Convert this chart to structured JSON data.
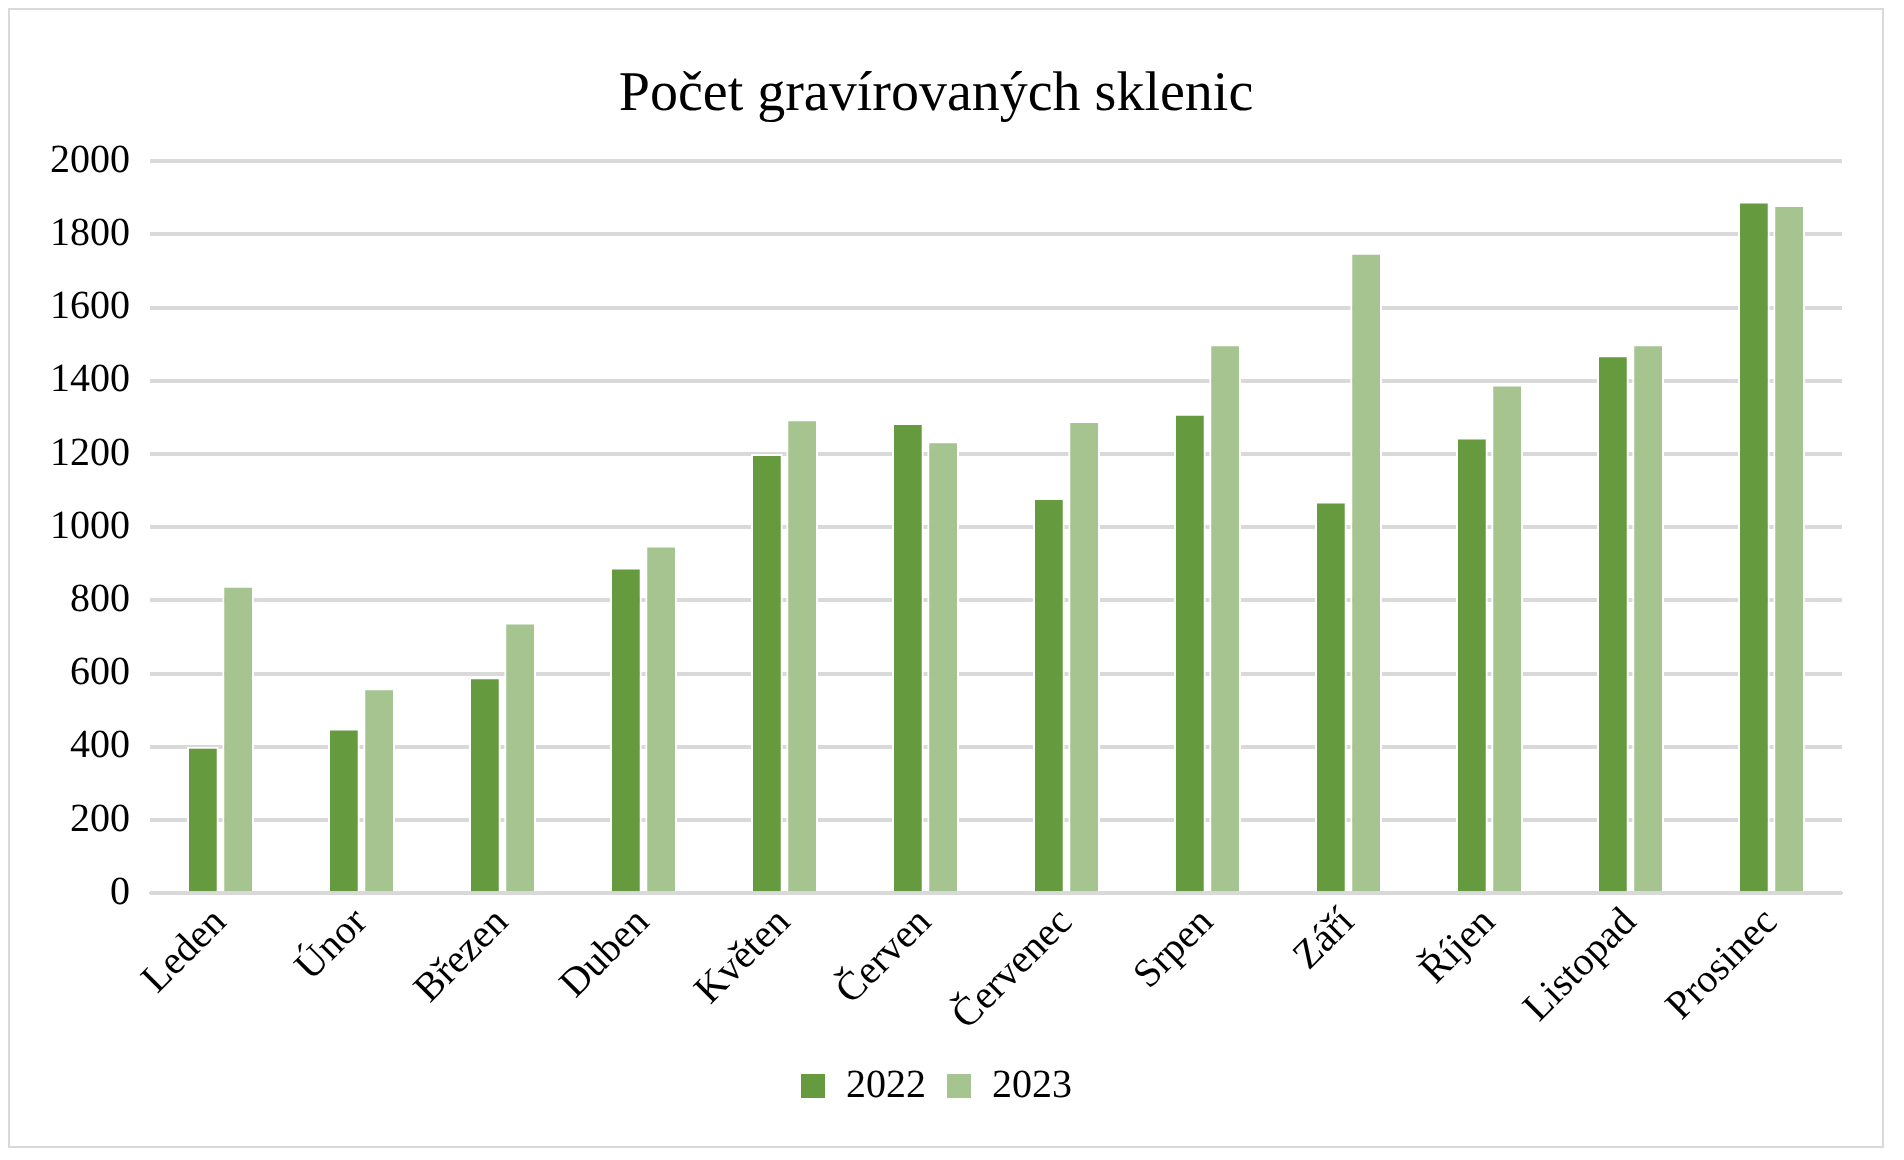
{
  "chart_data": {
    "type": "bar",
    "title": "Počet gravírovaných sklenic",
    "categories": [
      "Leden",
      "Únor",
      "Březen",
      "Duben",
      "Květen",
      "Červen",
      "Červenec",
      "Srpen",
      "Září",
      "Říjen",
      "Listopad",
      "Prosinec"
    ],
    "series": [
      {
        "name": "2022",
        "color": "#659a3f",
        "values": [
          400,
          450,
          590,
          890,
          1200,
          1285,
          1080,
          1310,
          1070,
          1245,
          1470,
          1890
        ]
      },
      {
        "name": "2023",
        "color": "#a5c490",
        "values": [
          840,
          560,
          740,
          950,
          1295,
          1235,
          1290,
          1500,
          1750,
          1390,
          1500,
          1880
        ]
      }
    ],
    "ylim": [
      0,
      2000
    ],
    "yticks": [
      0,
      200,
      400,
      600,
      800,
      1000,
      1200,
      1400,
      1600,
      1800,
      2000
    ],
    "grid": "y",
    "legend": "bottom"
  }
}
